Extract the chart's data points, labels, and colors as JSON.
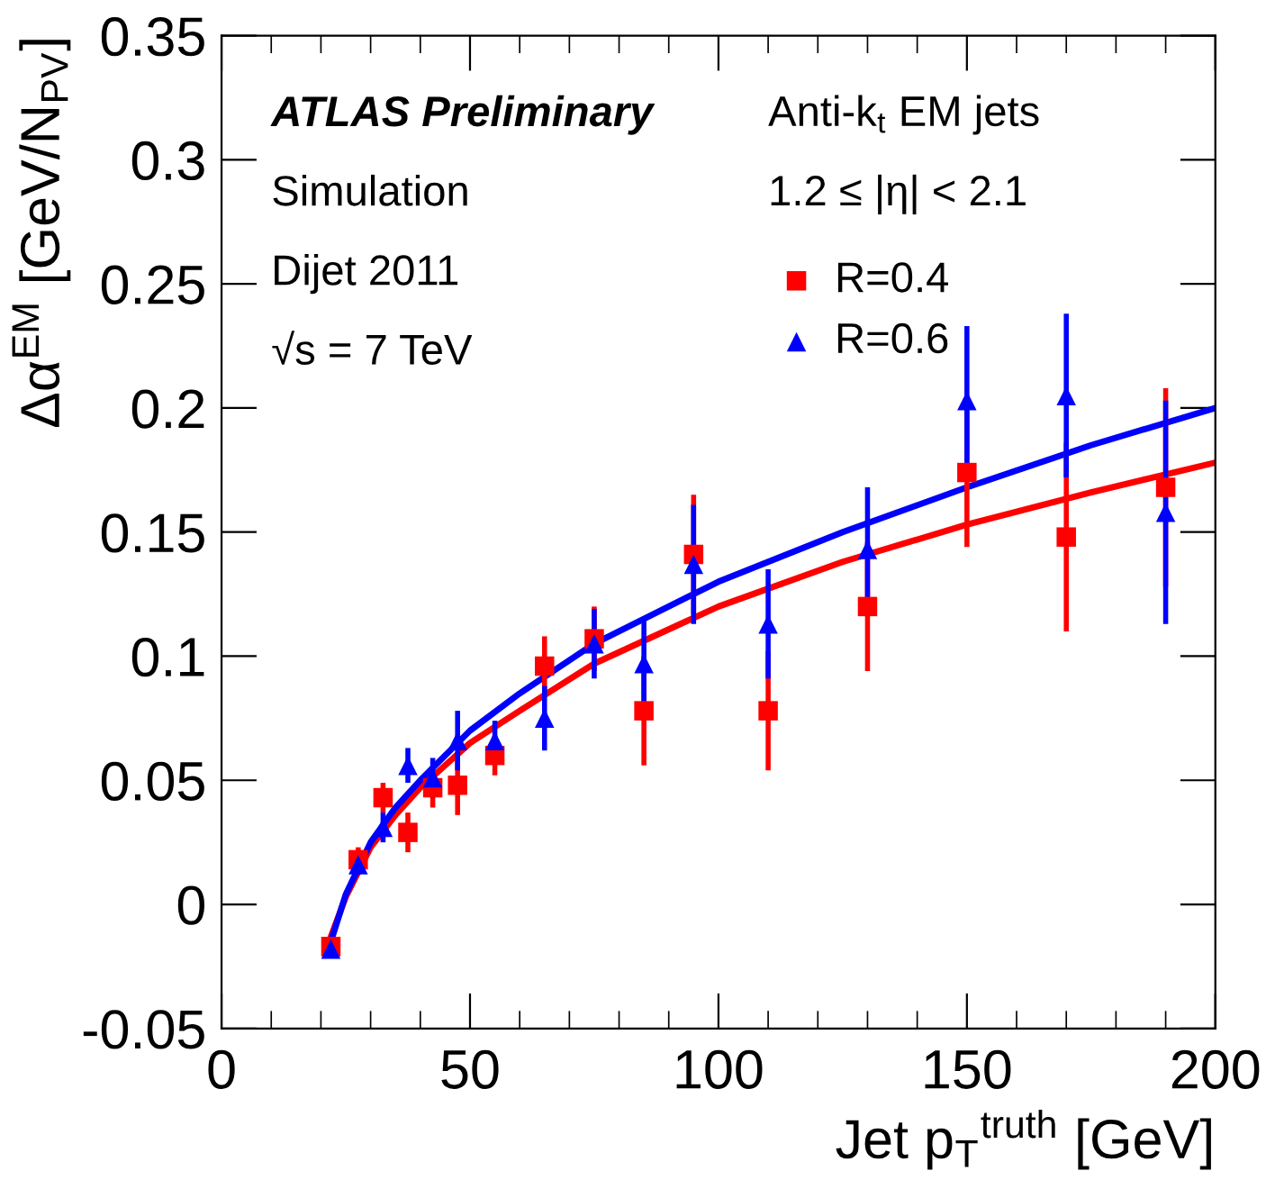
{
  "chart_data": {
    "type": "scatter",
    "xlabel": "Jet p$_{T}$$^{truth}$ [GeV]",
    "ylabel": "Δα$^{EM}$ [GeV/N$_{PV}$]",
    "annotations": [
      "ATLAS Preliminary",
      "Simulation",
      "Dijet 2011",
      "√s = 7 TeV",
      "Anti-k$_{t}$ EM jets",
      "1.2 ≤ |η| < 2.1"
    ],
    "xlim": [
      0,
      200
    ],
    "xticks": [
      0,
      50,
      100,
      150,
      200
    ],
    "ylim": [
      -0.05,
      0.35
    ],
    "yticks": [
      -0.05,
      0,
      0.05,
      0.1,
      0.15,
      0.2,
      0.25,
      0.3,
      0.35
    ],
    "grid": false,
    "legend": "top right",
    "series": [
      {
        "name": "R=0.4",
        "color": "#ff0000",
        "marker": "square",
        "x": [
          22,
          27.5,
          32.5,
          37.5,
          42.5,
          47.5,
          55,
          65,
          75,
          85,
          95,
          110,
          130,
          150,
          170,
          190
        ],
        "values": [
          -0.017,
          0.018,
          0.043,
          0.029,
          0.047,
          0.048,
          0.06,
          0.096,
          0.107,
          0.078,
          0.141,
          0.078,
          0.12,
          0.174,
          0.148,
          0.168
        ],
        "errors": [
          0.003,
          0.005,
          0.006,
          0.008,
          0.008,
          0.012,
          0.008,
          0.012,
          0.013,
          0.022,
          0.024,
          0.024,
          0.026,
          0.03,
          0.038,
          0.04
        ]
      },
      {
        "name": "R=0.6",
        "color": "#0000ff",
        "marker": "triangle",
        "x": [
          22,
          27.5,
          32.5,
          37.5,
          42.5,
          47.5,
          55,
          65,
          75,
          85,
          95,
          110,
          130,
          150,
          170,
          190
        ],
        "values": [
          -0.018,
          0.016,
          0.031,
          0.056,
          0.051,
          0.066,
          0.066,
          0.075,
          0.105,
          0.097,
          0.137,
          0.113,
          0.143,
          0.203,
          0.205,
          0.158
        ],
        "errors": [
          0.003,
          0.004,
          0.006,
          0.007,
          0.008,
          0.012,
          0.008,
          0.013,
          0.014,
          0.018,
          0.024,
          0.022,
          0.025,
          0.03,
          0.033,
          0.045
        ]
      },
      {
        "type": "line",
        "color": "#ff0000",
        "marker": "none",
        "x": [
          22,
          25,
          30,
          35,
          40,
          50,
          60,
          75,
          100,
          125,
          150,
          175,
          200
        ],
        "values": [
          -0.013,
          0.003,
          0.023,
          0.036,
          0.047,
          0.065,
          0.078,
          0.097,
          0.12,
          0.138,
          0.153,
          0.166,
          0.178
        ]
      },
      {
        "type": "line",
        "color": "#0000ff",
        "marker": "none",
        "x": [
          22,
          25,
          30,
          35,
          40,
          50,
          60,
          75,
          100,
          125,
          150,
          175,
          200
        ],
        "values": [
          -0.015,
          0.004,
          0.025,
          0.039,
          0.05,
          0.07,
          0.085,
          0.105,
          0.13,
          0.15,
          0.168,
          0.185,
          0.2
        ]
      }
    ]
  }
}
